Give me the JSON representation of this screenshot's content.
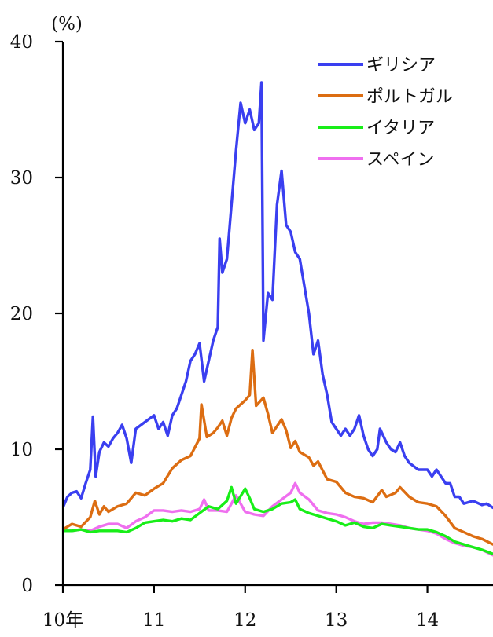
{
  "chart_data": {
    "type": "line",
    "title": "",
    "ylabel": "(%)",
    "xlabel": "",
    "ylim": [
      0,
      40
    ],
    "xlim": [
      2010.0,
      2014.72
    ],
    "yticks": [
      0,
      10,
      20,
      30,
      40
    ],
    "xticks": [
      {
        "value": 2010,
        "label": "10年"
      },
      {
        "value": 2011,
        "label": "11"
      },
      {
        "value": 2012,
        "label": "12"
      },
      {
        "value": 2013,
        "label": "13"
      },
      {
        "value": 2014,
        "label": "14"
      }
    ],
    "grid": false,
    "legend": "top-right",
    "series": [
      {
        "name": "ギリシア",
        "color": "#3a3ff0",
        "points": [
          [
            2010.0,
            5.7
          ],
          [
            2010.05,
            6.5
          ],
          [
            2010.1,
            6.8
          ],
          [
            2010.15,
            6.9
          ],
          [
            2010.2,
            6.4
          ],
          [
            2010.25,
            7.5
          ],
          [
            2010.3,
            8.5
          ],
          [
            2010.33,
            12.4
          ],
          [
            2010.36,
            8.0
          ],
          [
            2010.4,
            9.8
          ],
          [
            2010.45,
            10.5
          ],
          [
            2010.5,
            10.2
          ],
          [
            2010.55,
            10.8
          ],
          [
            2010.6,
            11.2
          ],
          [
            2010.65,
            11.8
          ],
          [
            2010.7,
            10.8
          ],
          [
            2010.75,
            9.0
          ],
          [
            2010.8,
            11.5
          ],
          [
            2010.9,
            12.0
          ],
          [
            2011.0,
            12.5
          ],
          [
            2011.05,
            11.5
          ],
          [
            2011.1,
            12.0
          ],
          [
            2011.15,
            11.0
          ],
          [
            2011.2,
            12.5
          ],
          [
            2011.25,
            13.0
          ],
          [
            2011.3,
            14.0
          ],
          [
            2011.35,
            15.0
          ],
          [
            2011.4,
            16.5
          ],
          [
            2011.45,
            17.0
          ],
          [
            2011.5,
            17.8
          ],
          [
            2011.55,
            15.0
          ],
          [
            2011.6,
            16.5
          ],
          [
            2011.65,
            18.0
          ],
          [
            2011.7,
            19.0
          ],
          [
            2011.72,
            25.5
          ],
          [
            2011.75,
            23.0
          ],
          [
            2011.8,
            24.0
          ],
          [
            2011.85,
            28.0
          ],
          [
            2011.9,
            32.0
          ],
          [
            2011.95,
            35.5
          ],
          [
            2012.0,
            34.0
          ],
          [
            2012.05,
            35.0
          ],
          [
            2012.1,
            33.5
          ],
          [
            2012.15,
            34.0
          ],
          [
            2012.18,
            37.0
          ],
          [
            2012.2,
            18.0
          ],
          [
            2012.25,
            21.5
          ],
          [
            2012.3,
            21.0
          ],
          [
            2012.35,
            28.0
          ],
          [
            2012.4,
            30.5
          ],
          [
            2012.45,
            26.5
          ],
          [
            2012.5,
            26.0
          ],
          [
            2012.55,
            24.5
          ],
          [
            2012.6,
            24.0
          ],
          [
            2012.65,
            22.0
          ],
          [
            2012.7,
            20.0
          ],
          [
            2012.75,
            17.0
          ],
          [
            2012.8,
            18.0
          ],
          [
            2012.85,
            15.5
          ],
          [
            2012.9,
            14.0
          ],
          [
            2012.95,
            12.0
          ],
          [
            2013.0,
            11.5
          ],
          [
            2013.05,
            11.0
          ],
          [
            2013.1,
            11.5
          ],
          [
            2013.15,
            11.0
          ],
          [
            2013.2,
            11.5
          ],
          [
            2013.25,
            12.5
          ],
          [
            2013.3,
            11.0
          ],
          [
            2013.35,
            10.0
          ],
          [
            2013.4,
            9.5
          ],
          [
            2013.45,
            10.0
          ],
          [
            2013.48,
            11.5
          ],
          [
            2013.55,
            10.5
          ],
          [
            2013.6,
            10.0
          ],
          [
            2013.65,
            9.8
          ],
          [
            2013.7,
            10.5
          ],
          [
            2013.75,
            9.5
          ],
          [
            2013.8,
            9.0
          ],
          [
            2013.9,
            8.5
          ],
          [
            2014.0,
            8.5
          ],
          [
            2014.05,
            8.0
          ],
          [
            2014.1,
            8.5
          ],
          [
            2014.15,
            8.0
          ],
          [
            2014.2,
            7.5
          ],
          [
            2014.25,
            7.5
          ],
          [
            2014.3,
            6.5
          ],
          [
            2014.35,
            6.5
          ],
          [
            2014.4,
            6.0
          ],
          [
            2014.5,
            6.2
          ],
          [
            2014.6,
            5.9
          ],
          [
            2014.65,
            6.0
          ],
          [
            2014.72,
            5.7
          ]
        ]
      },
      {
        "name": "ポルトガル",
        "color": "#dc6d12",
        "points": [
          [
            2010.0,
            4.1
          ],
          [
            2010.1,
            4.5
          ],
          [
            2010.2,
            4.3
          ],
          [
            2010.3,
            5.0
          ],
          [
            2010.35,
            6.2
          ],
          [
            2010.4,
            5.2
          ],
          [
            2010.45,
            5.8
          ],
          [
            2010.5,
            5.4
          ],
          [
            2010.6,
            5.8
          ],
          [
            2010.7,
            6.0
          ],
          [
            2010.8,
            6.8
          ],
          [
            2010.9,
            6.6
          ],
          [
            2011.0,
            7.1
          ],
          [
            2011.1,
            7.5
          ],
          [
            2011.2,
            8.6
          ],
          [
            2011.3,
            9.2
          ],
          [
            2011.4,
            9.5
          ],
          [
            2011.5,
            10.8
          ],
          [
            2011.52,
            13.3
          ],
          [
            2011.58,
            10.9
          ],
          [
            2011.65,
            11.2
          ],
          [
            2011.7,
            11.6
          ],
          [
            2011.75,
            12.1
          ],
          [
            2011.8,
            11.0
          ],
          [
            2011.85,
            12.3
          ],
          [
            2011.9,
            13.0
          ],
          [
            2012.0,
            13.6
          ],
          [
            2012.05,
            14.0
          ],
          [
            2012.08,
            17.3
          ],
          [
            2012.12,
            13.2
          ],
          [
            2012.2,
            13.8
          ],
          [
            2012.25,
            12.6
          ],
          [
            2012.3,
            11.2
          ],
          [
            2012.4,
            12.2
          ],
          [
            2012.45,
            11.4
          ],
          [
            2012.5,
            10.1
          ],
          [
            2012.55,
            10.6
          ],
          [
            2012.6,
            9.8
          ],
          [
            2012.7,
            9.4
          ],
          [
            2012.75,
            8.8
          ],
          [
            2012.8,
            9.1
          ],
          [
            2012.9,
            7.8
          ],
          [
            2013.0,
            7.6
          ],
          [
            2013.1,
            6.8
          ],
          [
            2013.2,
            6.5
          ],
          [
            2013.3,
            6.4
          ],
          [
            2013.4,
            6.1
          ],
          [
            2013.5,
            7.0
          ],
          [
            2013.55,
            6.5
          ],
          [
            2013.65,
            6.8
          ],
          [
            2013.7,
            7.2
          ],
          [
            2013.8,
            6.5
          ],
          [
            2013.9,
            6.1
          ],
          [
            2014.0,
            6.0
          ],
          [
            2014.1,
            5.8
          ],
          [
            2014.2,
            5.1
          ],
          [
            2014.3,
            4.2
          ],
          [
            2014.4,
            3.9
          ],
          [
            2014.5,
            3.6
          ],
          [
            2014.6,
            3.4
          ],
          [
            2014.72,
            3.0
          ]
        ]
      },
      {
        "name": "イタリア",
        "color": "#18ee18",
        "points": [
          [
            2010.0,
            4.0
          ],
          [
            2010.1,
            4.0
          ],
          [
            2010.2,
            4.1
          ],
          [
            2010.3,
            3.9
          ],
          [
            2010.4,
            4.0
          ],
          [
            2010.5,
            4.0
          ],
          [
            2010.6,
            4.0
          ],
          [
            2010.7,
            3.9
          ],
          [
            2010.8,
            4.2
          ],
          [
            2010.9,
            4.6
          ],
          [
            2011.0,
            4.7
          ],
          [
            2011.1,
            4.8
          ],
          [
            2011.2,
            4.7
          ],
          [
            2011.3,
            4.9
          ],
          [
            2011.4,
            4.8
          ],
          [
            2011.5,
            5.3
          ],
          [
            2011.6,
            5.8
          ],
          [
            2011.7,
            5.6
          ],
          [
            2011.8,
            6.2
          ],
          [
            2011.85,
            7.2
          ],
          [
            2011.9,
            6.0
          ],
          [
            2012.0,
            7.1
          ],
          [
            2012.05,
            6.4
          ],
          [
            2012.1,
            5.6
          ],
          [
            2012.2,
            5.4
          ],
          [
            2012.3,
            5.6
          ],
          [
            2012.4,
            6.0
          ],
          [
            2012.5,
            6.1
          ],
          [
            2012.55,
            6.3
          ],
          [
            2012.6,
            5.6
          ],
          [
            2012.7,
            5.3
          ],
          [
            2012.8,
            5.1
          ],
          [
            2012.9,
            4.9
          ],
          [
            2013.0,
            4.7
          ],
          [
            2013.1,
            4.4
          ],
          [
            2013.2,
            4.6
          ],
          [
            2013.3,
            4.3
          ],
          [
            2013.4,
            4.2
          ],
          [
            2013.5,
            4.5
          ],
          [
            2013.6,
            4.4
          ],
          [
            2013.7,
            4.3
          ],
          [
            2013.8,
            4.2
          ],
          [
            2013.9,
            4.1
          ],
          [
            2014.0,
            4.1
          ],
          [
            2014.1,
            3.9
          ],
          [
            2014.2,
            3.6
          ],
          [
            2014.3,
            3.2
          ],
          [
            2014.4,
            3.0
          ],
          [
            2014.5,
            2.8
          ],
          [
            2014.6,
            2.6
          ],
          [
            2014.72,
            2.3
          ]
        ]
      },
      {
        "name": "スペイン",
        "color": "#ef6fef",
        "points": [
          [
            2010.0,
            4.0
          ],
          [
            2010.1,
            4.0
          ],
          [
            2010.2,
            4.1
          ],
          [
            2010.3,
            4.0
          ],
          [
            2010.4,
            4.3
          ],
          [
            2010.5,
            4.5
          ],
          [
            2010.6,
            4.5
          ],
          [
            2010.7,
            4.2
          ],
          [
            2010.8,
            4.7
          ],
          [
            2010.9,
            5.0
          ],
          [
            2011.0,
            5.5
          ],
          [
            2011.1,
            5.5
          ],
          [
            2011.2,
            5.4
          ],
          [
            2011.3,
            5.5
          ],
          [
            2011.4,
            5.4
          ],
          [
            2011.5,
            5.6
          ],
          [
            2011.55,
            6.3
          ],
          [
            2011.6,
            5.5
          ],
          [
            2011.7,
            5.5
          ],
          [
            2011.8,
            5.4
          ],
          [
            2011.9,
            6.6
          ],
          [
            2012.0,
            5.4
          ],
          [
            2012.1,
            5.2
          ],
          [
            2012.2,
            5.1
          ],
          [
            2012.3,
            5.8
          ],
          [
            2012.4,
            6.3
          ],
          [
            2012.5,
            6.8
          ],
          [
            2012.55,
            7.5
          ],
          [
            2012.6,
            6.8
          ],
          [
            2012.7,
            6.3
          ],
          [
            2012.8,
            5.5
          ],
          [
            2012.9,
            5.3
          ],
          [
            2013.0,
            5.2
          ],
          [
            2013.1,
            5.0
          ],
          [
            2013.2,
            4.7
          ],
          [
            2013.3,
            4.5
          ],
          [
            2013.4,
            4.6
          ],
          [
            2013.5,
            4.6
          ],
          [
            2013.6,
            4.5
          ],
          [
            2013.7,
            4.4
          ],
          [
            2013.8,
            4.2
          ],
          [
            2013.9,
            4.1
          ],
          [
            2014.0,
            4.0
          ],
          [
            2014.1,
            3.8
          ],
          [
            2014.2,
            3.4
          ],
          [
            2014.3,
            3.1
          ],
          [
            2014.4,
            2.9
          ],
          [
            2014.5,
            2.8
          ],
          [
            2014.6,
            2.6
          ],
          [
            2014.72,
            2.2
          ]
        ]
      }
    ]
  }
}
